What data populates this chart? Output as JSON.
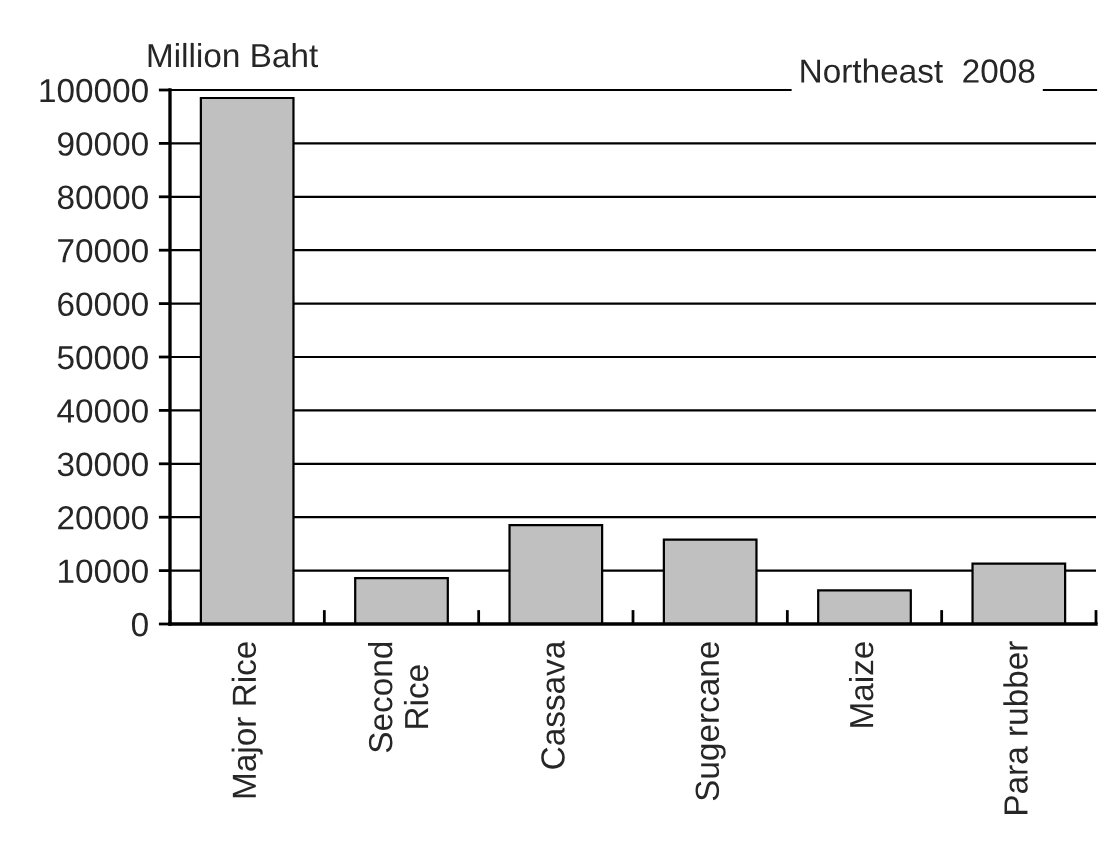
{
  "chart_data": {
    "type": "bar",
    "title": "Northeast  2008",
    "ylabel": "Million Baht",
    "categories": [
      "Major Rice",
      "Second\nRice",
      "Cassava",
      "Sugercane",
      "Maize",
      "Para rubber"
    ],
    "values": [
      98500,
      8600,
      18500,
      15800,
      6300,
      11300
    ],
    "color": "#c0c0c0",
    "ylim": [
      0,
      100000
    ],
    "yticks": [
      0,
      10000,
      20000,
      30000,
      40000,
      50000,
      60000,
      70000,
      80000,
      90000,
      100000
    ],
    "grid": "y"
  }
}
